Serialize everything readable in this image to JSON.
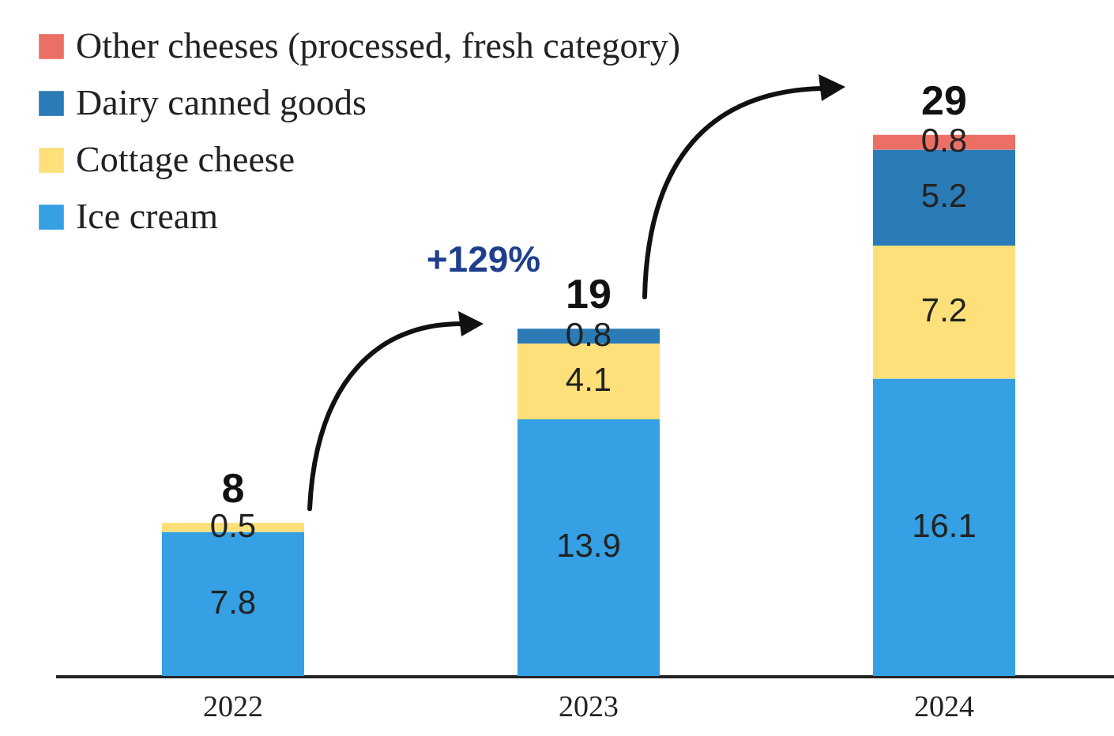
{
  "chart_data": {
    "type": "bar",
    "stacked": true,
    "categories": [
      "2022",
      "2023",
      "2024"
    ],
    "series": [
      {
        "name": "Ice cream",
        "color": "#35a0e3",
        "values": [
          7.8,
          13.9,
          16.1
        ]
      },
      {
        "name": "Cottage cheese",
        "color": "#fde07a",
        "values": [
          0.5,
          4.1,
          7.2
        ]
      },
      {
        "name": "Dairy canned goods",
        "color": "#2a7bb6",
        "values": [
          null,
          0.8,
          5.2
        ]
      },
      {
        "name": "Other cheeses (processed, fresh category)",
        "color": "#ec6f66",
        "values": [
          null,
          null,
          0.8
        ]
      }
    ],
    "data_labels": true,
    "totals": [
      "8",
      "19",
      "29"
    ],
    "annotations": [
      "+129%"
    ],
    "legend": "top left",
    "grid": false
  }
}
